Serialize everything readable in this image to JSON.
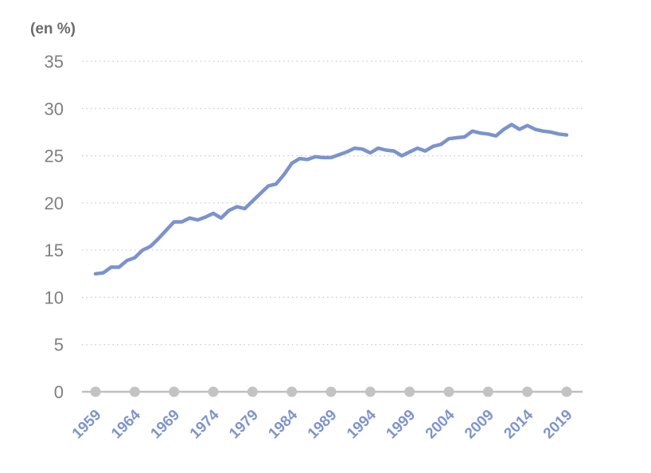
{
  "chart_data": {
    "type": "line",
    "unit_label": "(en %)",
    "ylim": [
      0,
      35
    ],
    "yticks": [
      "0",
      "5",
      "10",
      "15",
      "20",
      "25",
      "30",
      "35"
    ],
    "xlim": [
      1959,
      2019
    ],
    "xticks": [
      "1959",
      "1964",
      "1969",
      "1974",
      "1979",
      "1984",
      "1989",
      "1994",
      "1999",
      "2004",
      "2009",
      "2014",
      "2019"
    ],
    "grid": "horizontal-dotted",
    "legend": "none",
    "colors": {
      "series": "#7b93cc",
      "axis": "#bfbfbf",
      "markers": "#c3c3c3",
      "xtick": "#7f95c9"
    },
    "series": [
      {
        "x": [
          1959,
          1960,
          1961,
          1962,
          1963,
          1964,
          1965,
          1966,
          1967,
          1968,
          1969,
          1970,
          1971,
          1972,
          1973,
          1974,
          1975,
          1976,
          1977,
          1978,
          1979,
          1980,
          1981,
          1982,
          1983,
          1984,
          1985,
          1986,
          1987,
          1988,
          1989,
          1990,
          1991,
          1992,
          1993,
          1994,
          1995,
          1996,
          1997,
          1998,
          1999,
          2000,
          2001,
          2002,
          2003,
          2004,
          2005,
          2006,
          2007,
          2008,
          2009,
          2010,
          2011,
          2012,
          2013,
          2014,
          2015,
          2016,
          2017,
          2018,
          2019
        ],
        "values": [
          12.5,
          12.6,
          13.2,
          13.2,
          13.9,
          14.2,
          15.0,
          15.4,
          16.2,
          17.1,
          18.0,
          18.0,
          18.4,
          18.2,
          18.5,
          18.9,
          18.4,
          19.2,
          19.6,
          19.4,
          20.2,
          21.0,
          21.8,
          22.0,
          23.0,
          24.2,
          24.7,
          24.6,
          24.9,
          24.8,
          24.8,
          25.1,
          25.4,
          25.8,
          25.7,
          25.3,
          25.8,
          25.6,
          25.5,
          25.0,
          25.4,
          25.8,
          25.5,
          26.0,
          26.2,
          26.8,
          26.9,
          27.0,
          27.6,
          27.4,
          27.3,
          27.1,
          27.8,
          28.3,
          27.8,
          28.2,
          27.8,
          27.6,
          27.5,
          27.3,
          27.2
        ]
      }
    ]
  }
}
